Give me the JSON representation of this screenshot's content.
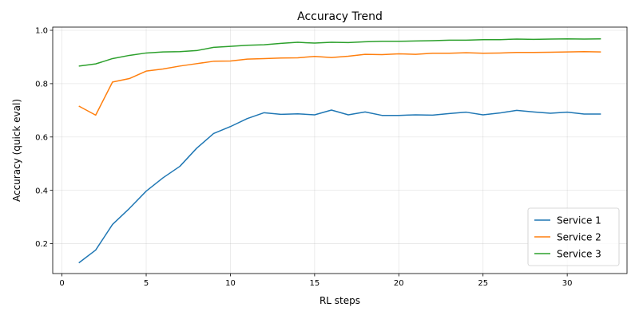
{
  "chart_data": {
    "type": "line",
    "title": "Accuracy Trend",
    "xlabel": "RL steps",
    "ylabel": "Accuracy (quick eval)",
    "xlim": [
      -0.55,
      33.55
    ],
    "ylim": [
      0.088,
      1.012
    ],
    "xticks": [
      0,
      5,
      10,
      15,
      20,
      25,
      30
    ],
    "yticks": [
      0.2,
      0.4,
      0.6,
      0.8,
      1.0
    ],
    "ytick_labels": [
      "0.2",
      "0.4",
      "0.6",
      "0.8",
      "1.0"
    ],
    "grid": true,
    "legend_position": "lower-right",
    "x": [
      1,
      2,
      3,
      4,
      5,
      6,
      7,
      8,
      9,
      10,
      11,
      12,
      13,
      14,
      15,
      16,
      17,
      18,
      19,
      20,
      21,
      22,
      23,
      24,
      25,
      26,
      27,
      28,
      29,
      30,
      31,
      32
    ],
    "series": [
      {
        "name": "Service 1",
        "color": "#1f77b4",
        "values": [
          0.128,
          0.176,
          0.272,
          0.332,
          0.397,
          0.447,
          0.49,
          0.558,
          0.613,
          0.639,
          0.669,
          0.691,
          0.685,
          0.687,
          0.683,
          0.701,
          0.683,
          0.694,
          0.681,
          0.681,
          0.683,
          0.682,
          0.688,
          0.693,
          0.683,
          0.69,
          0.7,
          0.694,
          0.689,
          0.693,
          0.686,
          0.686
        ]
      },
      {
        "name": "Service 2",
        "color": "#ff7f0e",
        "values": [
          0.716,
          0.682,
          0.806,
          0.819,
          0.847,
          0.855,
          0.866,
          0.875,
          0.884,
          0.885,
          0.892,
          0.894,
          0.896,
          0.897,
          0.902,
          0.898,
          0.903,
          0.91,
          0.909,
          0.912,
          0.91,
          0.914,
          0.914,
          0.916,
          0.914,
          0.915,
          0.917,
          0.917,
          0.918,
          0.919,
          0.92,
          0.919
        ]
      },
      {
        "name": "Service 3",
        "color": "#2ca02c",
        "values": [
          0.866,
          0.874,
          0.894,
          0.906,
          0.915,
          0.919,
          0.92,
          0.924,
          0.936,
          0.94,
          0.944,
          0.946,
          0.951,
          0.955,
          0.952,
          0.955,
          0.954,
          0.957,
          0.959,
          0.959,
          0.96,
          0.961,
          0.963,
          0.963,
          0.965,
          0.965,
          0.967,
          0.966,
          0.967,
          0.968,
          0.967,
          0.968
        ]
      }
    ]
  }
}
